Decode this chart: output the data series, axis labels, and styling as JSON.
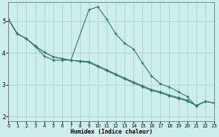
{
  "xlabel": "Humidex (Indice chaleur)",
  "background_color": "#ceeeed",
  "line_color": "#2a7a6a",
  "grid_color": "#aed4d0",
  "xlim": [
    0,
    23
  ],
  "ylim": [
    1.85,
    5.6
  ],
  "xticks": [
    0,
    1,
    2,
    3,
    4,
    5,
    6,
    7,
    8,
    9,
    10,
    11,
    12,
    13,
    14,
    15,
    16,
    17,
    18,
    19,
    20,
    21,
    22,
    23
  ],
  "yticks": [
    2,
    3,
    4,
    5
  ],
  "line_jagged": {
    "x": [
      0,
      1,
      2,
      3,
      4,
      5,
      6,
      7,
      9,
      10,
      11,
      12,
      13,
      14,
      15,
      16,
      17,
      18,
      19,
      20,
      21,
      22,
      23
    ],
    "y": [
      5.05,
      4.6,
      4.45,
      4.2,
      3.9,
      3.78,
      3.77,
      3.78,
      5.35,
      5.45,
      5.05,
      4.6,
      4.3,
      4.12,
      3.68,
      3.28,
      3.03,
      2.93,
      2.78,
      2.63,
      2.33,
      2.48,
      2.43
    ]
  },
  "line_mid": {
    "x": [
      0,
      1,
      2,
      3,
      4,
      5,
      6,
      7,
      8,
      9,
      10,
      11,
      12,
      13,
      14,
      15,
      16,
      17,
      18,
      19,
      20,
      21,
      22,
      23
    ],
    "y": [
      5.05,
      4.6,
      4.45,
      4.22,
      4.02,
      3.88,
      3.82,
      3.77,
      3.75,
      3.73,
      3.6,
      3.47,
      3.34,
      3.21,
      3.09,
      2.97,
      2.85,
      2.78,
      2.68,
      2.6,
      2.52,
      2.35,
      2.48,
      2.43
    ]
  },
  "line_low": {
    "x": [
      0,
      1,
      2,
      3,
      4,
      5,
      6,
      7,
      8,
      9,
      10,
      11,
      12,
      13,
      14,
      15,
      16,
      17,
      18,
      19,
      20,
      21,
      22,
      23
    ],
    "y": [
      5.05,
      4.6,
      4.45,
      4.22,
      4.02,
      3.88,
      3.82,
      3.77,
      3.73,
      3.7,
      3.57,
      3.44,
      3.31,
      3.18,
      3.06,
      2.94,
      2.82,
      2.75,
      2.65,
      2.57,
      2.49,
      2.35,
      2.48,
      2.43
    ]
  }
}
